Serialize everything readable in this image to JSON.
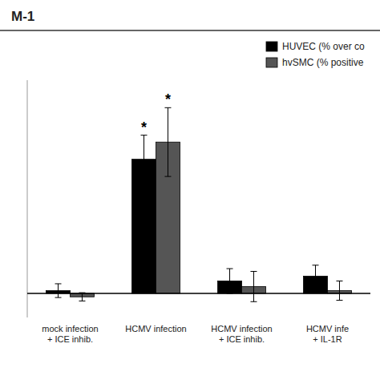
{
  "chart_data": {
    "type": "bar",
    "title": "M-1",
    "categories": [
      "mock infection\n+ ICE inhib.",
      "HCMV infection",
      "HCMV infection\n+ ICE inhib.",
      "HCMV infe\n+ IL-1R"
    ],
    "series": [
      {
        "name": "HUVEC (% over co",
        "color": "#000000",
        "values": [
          4,
          195,
          18,
          25
        ],
        "errors": [
          10,
          35,
          18,
          16
        ]
      },
      {
        "name": "hvSMC (% positive",
        "color": "#555555",
        "values": [
          -5,
          220,
          10,
          4
        ],
        "errors": [
          6,
          50,
          22,
          14
        ]
      }
    ],
    "ylim": [
      -35,
      310
    ],
    "tick_labels": "x",
    "legend": "upper right",
    "annotations": [
      {
        "text": "*",
        "category": "HCMV infection",
        "series": "HUVEC (% over co"
      },
      {
        "text": "*",
        "category": "HCMV infection",
        "series": "hvSMC (% positive"
      }
    ]
  }
}
